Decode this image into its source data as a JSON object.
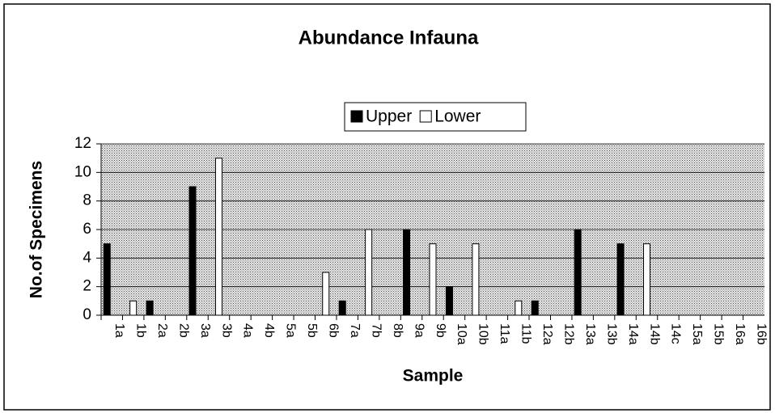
{
  "chart_data": {
    "type": "bar",
    "title": "Abundance Infauna",
    "x_label": "Sample",
    "y_label": "No.of Specimens",
    "categories": [
      "1a",
      "1b",
      "2a",
      "2b",
      "3a",
      "3b",
      "4a",
      "4b",
      "5a",
      "5b",
      "6b",
      "7a",
      "7b",
      "8b",
      "9a",
      "9b",
      "10a",
      "10b",
      "11a",
      "11b",
      "12a",
      "12b",
      "13a",
      "13b",
      "14a",
      "14b",
      "14c",
      "15a",
      "15b",
      "16a",
      "16b"
    ],
    "series": [
      {
        "name": "Upper",
        "color": "#000000",
        "values": [
          5,
          null,
          1,
          null,
          9,
          null,
          0,
          null,
          0,
          null,
          null,
          1,
          null,
          null,
          6,
          null,
          2,
          null,
          0,
          null,
          1,
          null,
          6,
          null,
          5,
          null,
          null,
          0,
          null,
          0,
          null
        ]
      },
      {
        "name": "Lower",
        "color": "#ffffff",
        "values": [
          null,
          1,
          null,
          0,
          null,
          11,
          null,
          0,
          null,
          0,
          3,
          null,
          6,
          0,
          null,
          5,
          null,
          5,
          null,
          1,
          null,
          0,
          null,
          0,
          null,
          5,
          null,
          null,
          0,
          null,
          0
        ]
      }
    ],
    "ylim": [
      0,
      12
    ],
    "yticks": [
      0,
      2,
      4,
      6,
      8,
      10,
      12
    ],
    "grid": true,
    "legend": "top"
  }
}
